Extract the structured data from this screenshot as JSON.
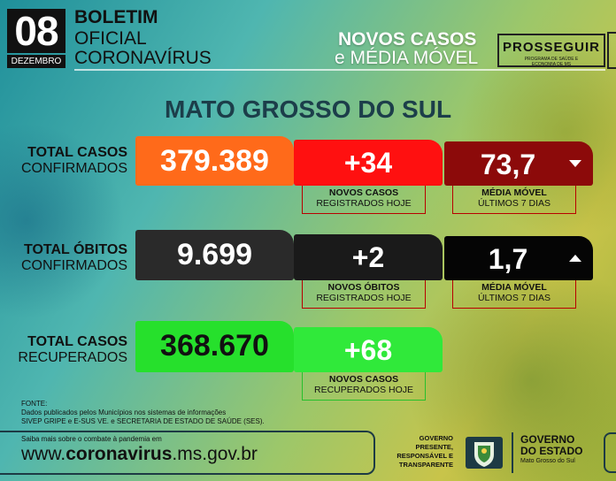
{
  "header": {
    "day": "08",
    "month": "DEZEMBRO",
    "bulletin_line1": "BOLETIM",
    "bulletin_line2": "OFICIAL",
    "bulletin_line3": "CORONAVÍRUS",
    "title_line1": "NOVOS CASOS",
    "title_line2": "e MÉDIA MÓVEL",
    "logo_main": "PROSSEGUIR",
    "logo_sub1": "PROGRAMA DE SAÚDE E",
    "logo_sub2": "ECONOMIA DE MS"
  },
  "state": "MATO GROSSO DO SUL",
  "cases": {
    "label1": "TOTAL CASOS",
    "label2": "CONFIRMADOS",
    "total": "379.389",
    "new": "+34",
    "new_label1": "NOVOS CASOS",
    "new_label2": "REGISTRADOS HOJE",
    "avg": "73,7",
    "avg_label1": "MÉDIA MÓVEL",
    "avg_label2": "ÚLTIMOS 7 DIAS",
    "trend": "down"
  },
  "deaths": {
    "label1": "TOTAL ÓBITOS",
    "label2": "CONFIRMADOS",
    "total": "9.699",
    "new": "+2",
    "new_label1": "NOVOS ÓBITOS",
    "new_label2": "REGISTRADOS HOJE",
    "avg": "1,7",
    "avg_label1": "MÉDIA MÓVEL",
    "avg_label2": "ÚLTIMOS 7 DIAS",
    "trend": "up"
  },
  "recovered": {
    "label1": "TOTAL CASOS",
    "label2": "RECUPERADOS",
    "total": "368.670",
    "new": "+68",
    "new_label1": "NOVOS CASOS",
    "new_label2": "RECUPERADOS HOJE"
  },
  "source": {
    "title": "FONTE:",
    "line1": "Dados publicados pelos Municípios nos sistemas de informações",
    "line2": "SIVEP GRIPE e E-SUS VE. e SECRETARIA DE ESTADO DE SAÚDE (SES)."
  },
  "footer": {
    "small": "Saiba mais sobre o combate à pandemia em",
    "url_pre": "www.",
    "url_bold": "coronavirus",
    "url_post": ".ms.gov.br",
    "gov_line1": "GOVERNO",
    "gov_line2": "PRESENTE,",
    "gov_line3": "RESPONSÁVEL E",
    "gov_line4": "TRANSPARENTE",
    "gov_box1": "GOVERNO",
    "gov_box2": "DO ESTADO",
    "gov_box3": "Mato Grosso do Sul"
  },
  "colors": {
    "orange": "#ff6a1a",
    "red": "#ff1010",
    "dark_red": "#8c0a0a",
    "dark_gray": "#2a2a2a",
    "black": "#050505",
    "green": "#26e02c",
    "green_light": "#30e93a"
  }
}
